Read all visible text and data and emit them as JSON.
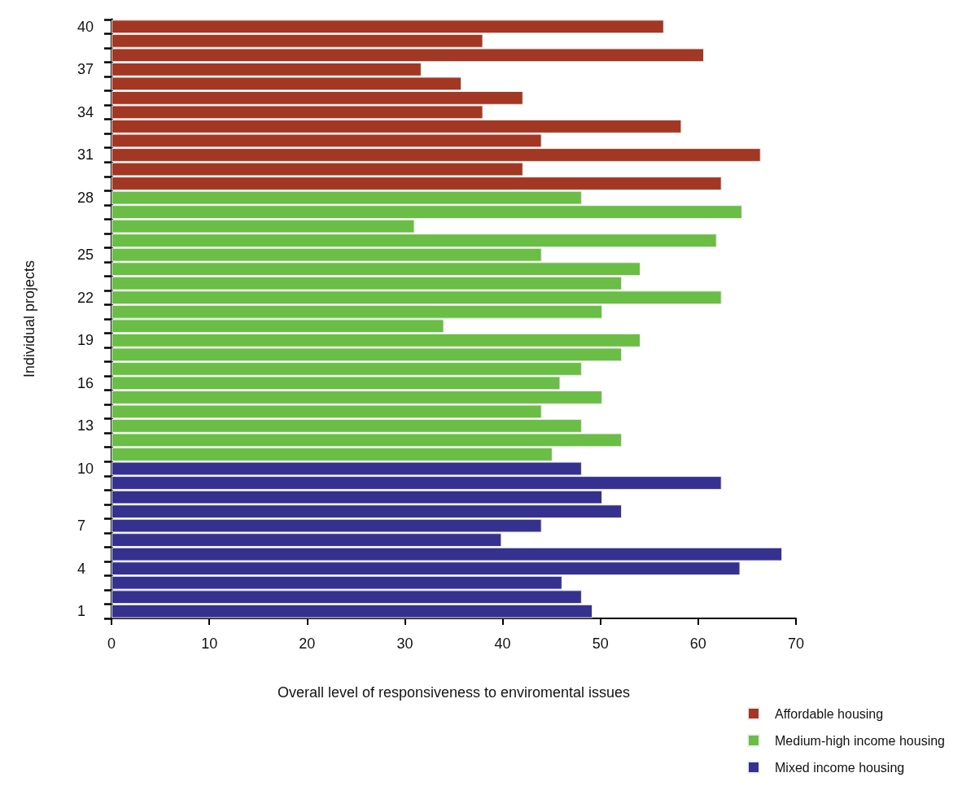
{
  "chart_data": {
    "type": "bar",
    "orientation": "horizontal",
    "xlabel": "Overall level of responsiveness to enviromental issues",
    "ylabel": "Individual projects",
    "categories": [
      "40",
      null,
      null,
      "37",
      null,
      null,
      "34",
      null,
      null,
      "31",
      null,
      null,
      "28",
      null,
      null,
      null,
      "25",
      null,
      null,
      "22",
      null,
      null,
      "19",
      null,
      null,
      "16",
      null,
      null,
      "13",
      null,
      null,
      "10",
      null,
      null,
      null,
      "7",
      null,
      null,
      "4",
      null,
      null,
      "1"
    ],
    "series": [
      {
        "name": "Affordable housing",
        "color": "#a23723",
        "values": [
          56.5,
          38.0,
          60.6,
          31.7,
          35.8,
          42.1,
          38.0,
          58.3,
          44.0,
          66.4,
          42.1,
          62.4,
          null,
          null,
          null,
          null,
          null,
          null,
          null,
          null,
          null,
          null,
          null,
          null,
          null,
          null,
          null,
          null,
          null,
          null,
          null,
          null,
          null,
          null,
          null,
          null,
          null,
          null,
          null,
          null,
          null,
          null
        ]
      },
      {
        "name": "Medium-high income housing",
        "color": "#6abd45",
        "values": [
          null,
          null,
          null,
          null,
          null,
          null,
          null,
          null,
          null,
          null,
          null,
          null,
          48.1,
          64.5,
          31.0,
          61.9,
          44.0,
          54.1,
          52.2,
          62.4,
          50.2,
          34.0,
          54.1,
          52.2,
          48.1,
          45.9,
          50.2,
          44.0,
          48.1,
          52.2,
          45.1,
          null,
          null,
          null,
          null,
          null,
          null,
          null,
          null,
          null,
          null,
          null
        ]
      },
      {
        "name": "Mixed income housing",
        "color": "#35318f",
        "values": [
          null,
          null,
          null,
          null,
          null,
          null,
          null,
          null,
          null,
          null,
          null,
          null,
          null,
          null,
          null,
          null,
          null,
          null,
          null,
          null,
          null,
          null,
          null,
          null,
          null,
          null,
          null,
          null,
          null,
          null,
          null,
          48.1,
          62.4,
          50.2,
          52.2,
          44.0,
          39.9,
          68.6,
          64.3,
          46.1,
          48.1,
          49.2
        ]
      }
    ],
    "xlim": [
      0,
      70
    ],
    "xticks": [
      0,
      10,
      20,
      30,
      40,
      50,
      60,
      70
    ],
    "grid": false,
    "legend": "bottom right"
  }
}
